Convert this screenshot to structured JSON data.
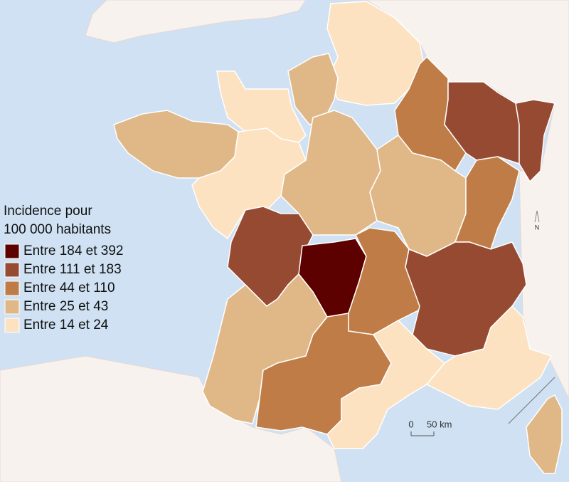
{
  "legend": {
    "title_lines": [
      "Incidence pour",
      "100 000 habitants"
    ],
    "classes": [
      {
        "label": "Entre 184 et 392",
        "color": "#5c0000"
      },
      {
        "label": "Entre 111 et 183",
        "color": "#964a32"
      },
      {
        "label": "Entre 44 et 110",
        "color": "#c07c46"
      },
      {
        "label": "Entre 25 et 43",
        "color": "#e0b888"
      },
      {
        "label": "Entre 14 et 24",
        "color": "#fde2c2"
      }
    ]
  },
  "scale": {
    "zero": "0",
    "distance": "50 km"
  },
  "north": "N"
}
